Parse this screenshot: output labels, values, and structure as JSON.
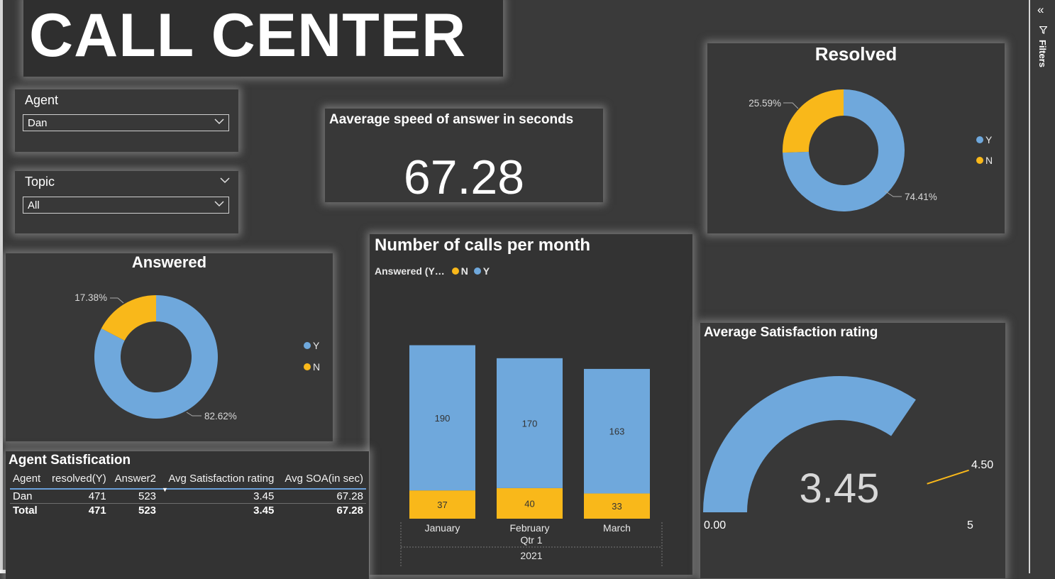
{
  "report": {
    "title": "CALL CENTER"
  },
  "slicers": {
    "agent": {
      "label": "Agent",
      "value": "Dan"
    },
    "topic": {
      "label": "Topic",
      "value": "All"
    }
  },
  "kpi": {
    "title": "Aaverage speed of answer in seconds",
    "value": "67.28"
  },
  "answered": {
    "title": "Answered",
    "legend": [
      {
        "label": "Y",
        "color": "#6fa8dc"
      },
      {
        "label": "N",
        "color": "#f9b81a"
      }
    ],
    "slice_labels": {
      "y": "82.62%",
      "n": "17.38%"
    }
  },
  "resolved": {
    "title": "Resolved",
    "legend": [
      {
        "label": "Y",
        "color": "#6fa8dc"
      },
      {
        "label": "N",
        "color": "#f9b81a"
      }
    ],
    "slice_labels": {
      "y": "74.41%",
      "n": "25.59%"
    }
  },
  "calls": {
    "title": "Number of calls per month",
    "legend_title": "Answered (Y…",
    "legend": [
      {
        "label": "N",
        "color": "#f9b81a"
      },
      {
        "label": "Y",
        "color": "#6fa8dc"
      }
    ],
    "quarter_label": "Qtr 1",
    "year_label": "2021"
  },
  "satisfaction": {
    "title": "Average Satisfaction rating",
    "value_label": "3.45",
    "min_label": "0.00",
    "max_label": "5",
    "target_label": "4.50"
  },
  "agent_table": {
    "title": "Agent Satisfication",
    "columns": [
      "Agent",
      "resolved(Y)",
      "Answer2",
      "Avg Satisfaction rating",
      "Avg SOA(in sec)"
    ],
    "rows": [
      [
        "Dan",
        "471",
        "523",
        "3.45",
        "67.28"
      ]
    ],
    "total": [
      "Total",
      "471",
      "523",
      "3.45",
      "67.28"
    ]
  },
  "filter_pane": {
    "label": "Filters"
  },
  "colors": {
    "accent_blue": "#6fa8dc",
    "accent_yellow": "#f9b81a",
    "background": "#3a3a3a"
  },
  "chart_data": [
    {
      "type": "pie",
      "title": "Answered",
      "categories": [
        "Y",
        "N"
      ],
      "values": [
        82.62,
        17.38
      ]
    },
    {
      "type": "pie",
      "title": "Resolved",
      "categories": [
        "Y",
        "N"
      ],
      "values": [
        74.41,
        25.59
      ]
    },
    {
      "type": "bar",
      "stacked": true,
      "title": "Number of calls per month",
      "categories": [
        "January",
        "February",
        "March"
      ],
      "series": [
        {
          "name": "N",
          "values": [
            37,
            40,
            33
          ]
        },
        {
          "name": "Y",
          "values": [
            190,
            170,
            163
          ]
        }
      ]
    },
    {
      "type": "gauge",
      "title": "Average Satisfaction rating",
      "value": 3.45,
      "min": 0,
      "max": 5,
      "target": 4.5
    }
  ]
}
